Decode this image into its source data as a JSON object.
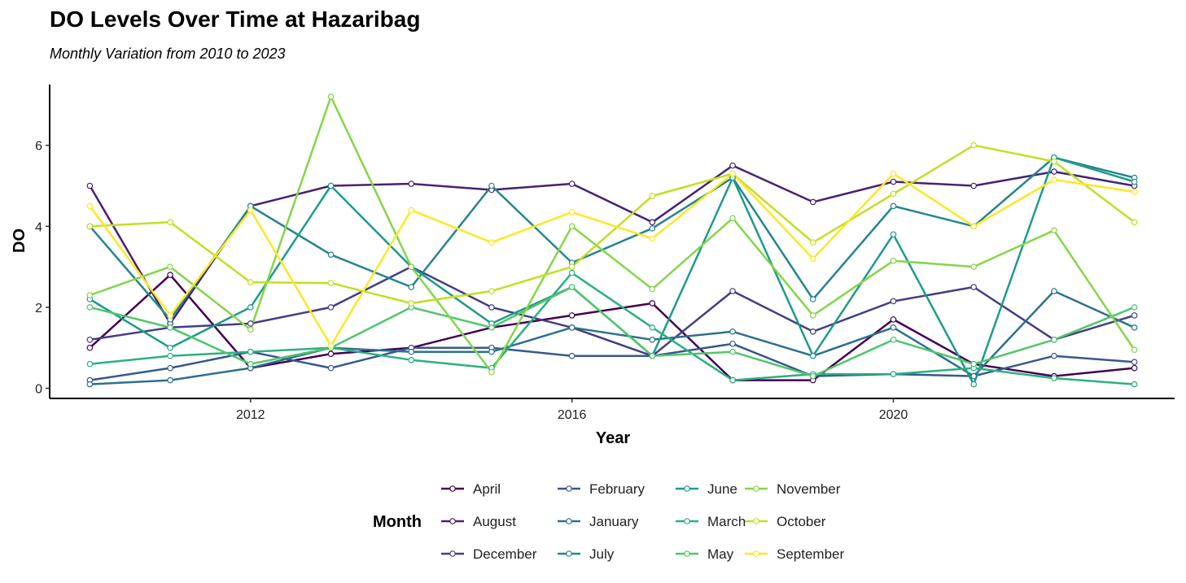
{
  "chart_data": {
    "type": "line",
    "title": "DO Levels Over Time at Hazaribag",
    "subtitle": "Monthly Variation from 2010 to 2023",
    "xlabel": "Year",
    "ylabel": "DO",
    "xlim": [
      2009.5,
      2023.5
    ],
    "ylim": [
      -0.25,
      7.5
    ],
    "xticks": [
      2012,
      2016,
      2020
    ],
    "yticks": [
      0,
      2,
      4,
      6
    ],
    "x": [
      2010,
      2011,
      2012,
      2013,
      2014,
      2015,
      2016,
      2017,
      2018,
      2019,
      2020,
      2021,
      2022,
      2023
    ],
    "grid": false,
    "legend": {
      "title": "Month",
      "position": "bottom"
    },
    "series": [
      {
        "name": "April",
        "color": "#440154",
        "values": [
          1.0,
          2.8,
          0.5,
          0.85,
          1.0,
          1.5,
          1.8,
          2.1,
          0.2,
          0.2,
          1.7,
          0.6,
          0.3,
          0.5
        ]
      },
      {
        "name": "August",
        "color": "#482173",
        "values": [
          5.0,
          1.6,
          4.5,
          5.0,
          5.05,
          4.9,
          5.05,
          4.1,
          5.5,
          4.6,
          5.1,
          5.0,
          5.35,
          5.0
        ]
      },
      {
        "name": "December",
        "color": "#433E85",
        "values": [
          1.2,
          1.5,
          1.6,
          2.0,
          3.0,
          2.0,
          1.5,
          0.8,
          2.4,
          1.4,
          2.15,
          2.5,
          1.2,
          1.8
        ]
      },
      {
        "name": "February",
        "color": "#38588C",
        "values": [
          0.2,
          0.5,
          0.9,
          0.5,
          1.0,
          1.0,
          0.8,
          0.8,
          1.1,
          0.3,
          0.35,
          0.3,
          0.8,
          0.65
        ]
      },
      {
        "name": "January",
        "color": "#2D708E",
        "values": [
          0.1,
          0.2,
          0.5,
          1.0,
          0.9,
          0.9,
          1.5,
          1.2,
          1.4,
          0.8,
          1.5,
          0.3,
          2.4,
          1.5
        ]
      },
      {
        "name": "July",
        "color": "#25858E",
        "values": [
          4.0,
          1.7,
          4.5,
          3.3,
          2.5,
          5.0,
          3.1,
          3.95,
          5.2,
          2.2,
          4.5,
          4.0,
          5.7,
          5.2
        ]
      },
      {
        "name": "June",
        "color": "#1E9B8A",
        "values": [
          2.2,
          1.0,
          2.0,
          5.0,
          3.0,
          1.6,
          2.5,
          0.8,
          5.2,
          0.8,
          3.8,
          0.1,
          5.7,
          5.1
        ]
      },
      {
        "name": "March",
        "color": "#2BB07F",
        "values": [
          0.6,
          0.8,
          0.9,
          1.0,
          0.7,
          0.5,
          2.85,
          1.5,
          0.2,
          0.35,
          0.35,
          0.5,
          0.25,
          0.1
        ]
      },
      {
        "name": "May",
        "color": "#51C56A",
        "values": [
          2.0,
          1.5,
          0.6,
          1.0,
          2.0,
          1.5,
          2.5,
          0.8,
          0.9,
          0.3,
          1.2,
          0.6,
          1.2,
          2.0
        ]
      },
      {
        "name": "November",
        "color": "#85D54A",
        "values": [
          2.3,
          3.0,
          1.45,
          7.2,
          3.0,
          0.4,
          4.0,
          2.45,
          4.2,
          1.8,
          3.15,
          3.0,
          3.9,
          0.95
        ]
      },
      {
        "name": "October",
        "color": "#C2DF23",
        "values": [
          4.0,
          4.1,
          2.62,
          2.6,
          2.1,
          2.4,
          3.0,
          4.75,
          5.3,
          3.6,
          4.8,
          6.0,
          5.6,
          4.1
        ]
      },
      {
        "name": "September",
        "color": "#FDE725",
        "values": [
          4.5,
          1.8,
          4.4,
          1.05,
          4.4,
          3.6,
          4.35,
          3.7,
          5.3,
          3.2,
          5.3,
          4.0,
          5.15,
          4.85
        ]
      }
    ]
  }
}
